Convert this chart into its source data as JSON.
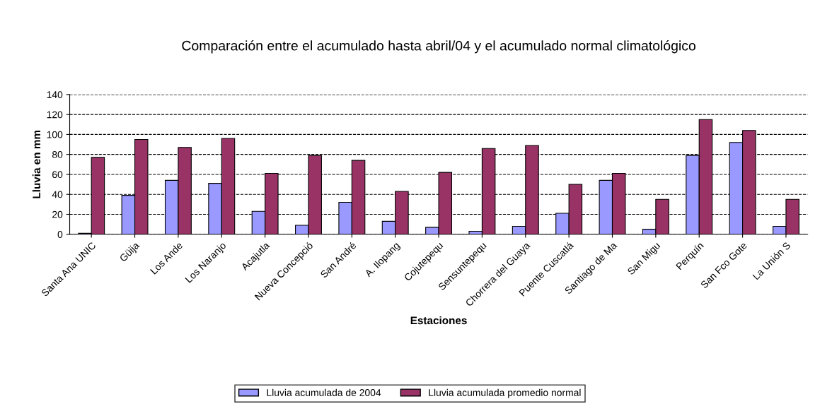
{
  "chart_data": {
    "type": "bar",
    "title": "Comparación entre el acumulado hasta abril/04 y el acumulado normal climatológico",
    "xlabel": "Estaciones",
    "ylabel": "Lluvia en mm",
    "categories": [
      "Santa Ana UNIC",
      "Güija",
      "Los Ande",
      "Los Naranjo",
      "Acajutla",
      "Nueva Concepció",
      "San André",
      "A. Ilopang",
      "Cojutepequ",
      "Sensuntepequ",
      "Chorrera del Guaya",
      "Puente Cuscatlá",
      "Santiago de Ma",
      "San Migu",
      "Perquín",
      "San Fco Gote",
      "La Unión S"
    ],
    "series": [
      {
        "name": "Lluvia acumulada de 2004",
        "color": "#9999ff",
        "values": [
          1,
          39,
          54,
          51,
          23,
          9,
          32,
          13,
          7,
          3,
          8,
          21,
          54,
          5,
          79,
          92,
          8
        ]
      },
      {
        "name": "Lluvia acumulada promedio normal",
        "color": "#993366",
        "values": [
          77,
          95,
          87,
          96,
          61,
          79,
          74,
          43,
          62,
          86,
          89,
          50,
          61,
          35,
          115,
          104,
          35
        ]
      }
    ],
    "ylim": [
      0,
      140
    ],
    "yticks": [
      0,
      20,
      40,
      60,
      80,
      100,
      120,
      140
    ],
    "grid": "y",
    "legend": "bottom"
  }
}
